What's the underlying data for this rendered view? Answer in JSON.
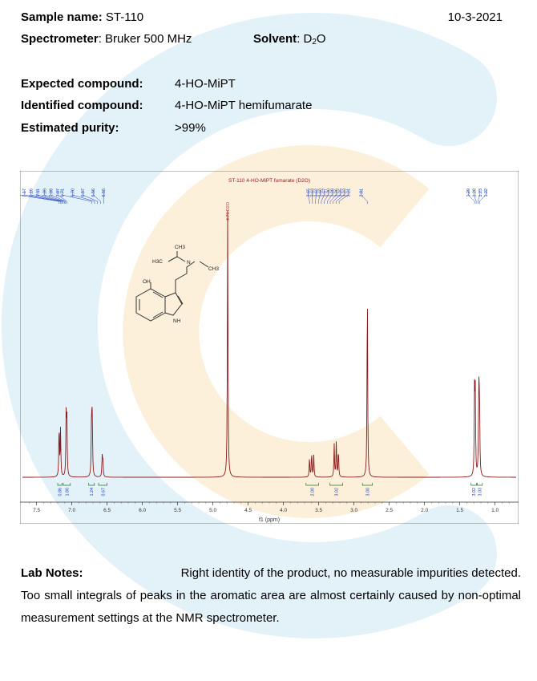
{
  "header": {
    "sample_label": "Sample name:",
    "sample_value": "ST-110",
    "date": "10-3-2021",
    "spectrometer_label": "Spectrometer",
    "spectrometer_value": ": Bruker 500 MHz",
    "solvent_label": "Solvent",
    "solvent_prefix": ": D",
    "solvent_sub": "2",
    "solvent_suffix": "O"
  },
  "summary": {
    "expected_label": "Expected compound:",
    "expected_value": "4-HO-MiPT",
    "identified_label": "Identified compound:",
    "identified_value": "4-HO-MiPT hemifumarate",
    "purity_label": "Estimated purity:",
    "purity_value": ">99%"
  },
  "chart_data": {
    "type": "line",
    "title": "ST-110 4-HO-MiPT fumarate (D2O)",
    "xlabel": "f1 (ppm)",
    "xlim": [
      7.7,
      0.7
    ],
    "x_ticks": [
      "7.5",
      "7.0",
      "6.5",
      "6.0",
      "5.5",
      "5.0",
      "4.5",
      "4.0",
      "3.5",
      "3.0",
      "2.5",
      "2.0",
      "1.5",
      "1.0"
    ],
    "series": [
      {
        "peaks": [
          {
            "ppm": 7.18,
            "height": 0.19
          },
          {
            "ppm": 7.16,
            "height": 0.17
          },
          {
            "ppm": 7.08,
            "height": 0.22
          },
          {
            "ppm": 7.07,
            "height": 0.2
          },
          {
            "ppm": 6.72,
            "height": 0.23
          },
          {
            "ppm": 6.71,
            "height": 0.21
          },
          {
            "ppm": 6.57,
            "height": 0.07
          },
          {
            "ppm": 6.56,
            "height": 0.065
          },
          {
            "ppm": 4.79,
            "height": 1.0
          },
          {
            "ppm": 3.63,
            "height": 0.07
          },
          {
            "ppm": 3.6,
            "height": 0.09
          },
          {
            "ppm": 3.57,
            "height": 0.08
          },
          {
            "ppm": 3.28,
            "height": 0.12
          },
          {
            "ppm": 3.25,
            "height": 0.13
          },
          {
            "ppm": 3.22,
            "height": 0.1
          },
          {
            "ppm": 2.81,
            "height": 0.71
          },
          {
            "ppm": 1.29,
            "height": 0.31
          },
          {
            "ppm": 1.28,
            "height": 0.29
          },
          {
            "ppm": 1.23,
            "height": 0.31
          },
          {
            "ppm": 1.22,
            "height": 0.29
          }
        ]
      }
    ],
    "peak_label_groups": [
      {
        "labels": [
          "7.18",
          "7.17",
          "7.16",
          "7.11",
          "7.09",
          "7.08",
          "7.07"
        ],
        "text_range": [
          7.77,
          7.2
        ],
        "tip_range": [
          7.18,
          7.07
        ]
      },
      {
        "labels": [
          "6.71",
          "6.70",
          "6.57",
          "6.56",
          "6.55"
        ],
        "text_range": [
          7.14,
          6.55
        ],
        "tip_range": [
          6.72,
          6.55
        ]
      },
      {
        "labels": [
          "4.79 D2O"
        ],
        "text_range": [
          4.79,
          4.79
        ],
        "tip_range": [
          4.79,
          4.79
        ]
      },
      {
        "labels": [
          "3.65",
          "3.63",
          "3.62",
          "3.60",
          "3.57",
          "3.30",
          "3.28",
          "3.26",
          "3.25",
          "3.23",
          "3.21"
        ],
        "text_range": [
          3.65,
          3.08
        ],
        "tip_range": [
          3.63,
          3.21
        ]
      },
      {
        "labels": [
          "2.81"
        ],
        "text_range": [
          2.9,
          2.9
        ],
        "tip_range": [
          2.81,
          2.81
        ]
      },
      {
        "labels": [
          "1.29",
          "1.28",
          "1.23",
          "1.22"
        ],
        "text_range": [
          1.38,
          1.13
        ],
        "tip_range": [
          1.29,
          1.22
        ]
      }
    ],
    "integrals": [
      {
        "value": "0.86",
        "range": [
          7.2,
          7.14
        ]
      },
      {
        "value": "1.80",
        "range": [
          7.12,
          7.02
        ]
      },
      {
        "value": "1.24",
        "range": [
          6.76,
          6.68
        ]
      },
      {
        "value": "0.67",
        "range": [
          6.62,
          6.5
        ]
      },
      {
        "value": "2.00",
        "range": [
          3.68,
          3.5
        ]
      },
      {
        "value": "3.02",
        "range": [
          3.34,
          3.16
        ]
      },
      {
        "value": "3.00",
        "range": [
          2.88,
          2.74
        ]
      },
      {
        "value": "3.02",
        "range": [
          1.34,
          1.26
        ]
      },
      {
        "value": "3.03",
        "range": [
          1.25,
          1.18
        ]
      }
    ]
  },
  "structure": {
    "atoms": [
      "OH",
      "NH",
      "N",
      "CH3",
      "CH3",
      "H3C"
    ]
  },
  "notes": {
    "label": "Lab Notes:",
    "line1": "Right identity of the product, no measurable impurities detected.",
    "body": "Too small integrals of peaks in the aromatic area are almost certainly caused by non-optimal measurement settings at the NMR spectrometer."
  },
  "colors": {
    "spectrum": "#8b1a1a",
    "peak_labels": "#1f3fbf",
    "integrals": "#1a7a1a",
    "title": "#8b1a1a",
    "watermark_blue": "#e3f1f9",
    "watermark_orange": "#fdf0da"
  }
}
